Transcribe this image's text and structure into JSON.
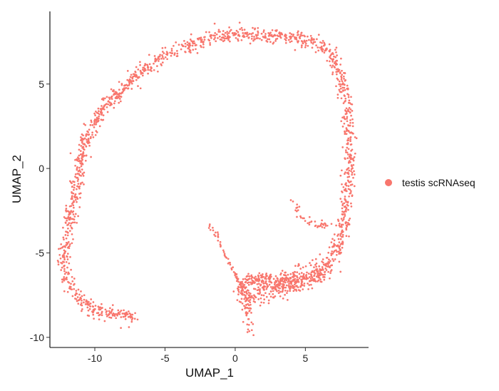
{
  "chart_data": {
    "type": "scatter",
    "xlabel": "UMAP_1",
    "ylabel": "UMAP_2",
    "xlim": [
      -13.2,
      9.5
    ],
    "ylim": [
      -10.6,
      9.3
    ],
    "xticks": [
      -10,
      -5,
      0,
      5
    ],
    "yticks": [
      -10,
      -5,
      0,
      5
    ],
    "xtick_labels": [
      "-10",
      "-5",
      "0",
      "5"
    ],
    "ytick_labels": [
      "-10",
      "-5",
      "0",
      "5"
    ],
    "grid": false,
    "legend": {
      "placement": "right",
      "entries": [
        "testis scRNAseq"
      ]
    },
    "series": [
      {
        "name": "testis scRNAseq",
        "color": "#F8766D",
        "paths": [
          {
            "id": "main-arc",
            "points": [
              [
                -7.2,
                -8.9
              ],
              [
                -8.0,
                -8.6
              ],
              [
                -9.0,
                -8.6
              ],
              [
                -10.0,
                -8.4
              ],
              [
                -10.8,
                -7.9
              ],
              [
                -11.6,
                -7.2
              ],
              [
                -12.0,
                -6.5
              ],
              [
                -12.3,
                -5.5
              ],
              [
                -12.0,
                -4.2
              ],
              [
                -11.8,
                -3.0
              ],
              [
                -11.5,
                -1.8
              ],
              [
                -11.2,
                -0.5
              ],
              [
                -10.9,
                0.8
              ],
              [
                -10.6,
                1.8
              ],
              [
                -10.1,
                2.6
              ],
              [
                -9.4,
                3.5
              ],
              [
                -8.6,
                4.3
              ],
              [
                -7.5,
                5.1
              ],
              [
                -6.6,
                5.8
              ],
              [
                -5.2,
                6.6
              ],
              [
                -3.8,
                7.1
              ],
              [
                -2.2,
                7.6
              ],
              [
                -0.5,
                7.9
              ],
              [
                1.0,
                7.9
              ],
              [
                2.5,
                7.9
              ],
              [
                3.8,
                7.8
              ],
              [
                5.5,
                7.5
              ],
              [
                6.8,
                6.9
              ],
              [
                7.5,
                5.5
              ],
              [
                7.9,
                4.0
              ],
              [
                8.1,
                2.5
              ],
              [
                8.2,
                0.5
              ],
              [
                8.0,
                -1.5
              ],
              [
                7.8,
                -3.0
              ],
              [
                7.4,
                -4.3
              ],
              [
                6.8,
                -5.5
              ],
              [
                5.8,
                -6.4
              ],
              [
                4.5,
                -6.8
              ],
              [
                3.2,
                -6.6
              ],
              [
                2.0,
                -6.5
              ],
              [
                0.8,
                -6.6
              ],
              [
                0.4,
                -7.3
              ]
            ],
            "count": 1700,
            "spread": 0.22
          },
          {
            "id": "branch-lower-tail",
            "points": [
              [
                0.6,
                -7.0
              ],
              [
                0.8,
                -7.8
              ],
              [
                0.9,
                -8.7
              ],
              [
                1.0,
                -9.6
              ]
            ],
            "count": 60,
            "spread": 0.18
          },
          {
            "id": "branch-diagonal-stream",
            "points": [
              [
                -1.9,
                -3.4
              ],
              [
                -1.2,
                -4.0
              ],
              [
                -0.8,
                -5.0
              ],
              [
                -0.2,
                -6.0
              ],
              [
                0.5,
                -7.0
              ]
            ],
            "count": 55,
            "spread": 0.08
          },
          {
            "id": "branch-right-spur",
            "points": [
              [
                4.1,
                -2.1
              ],
              [
                4.8,
                -2.9
              ],
              [
                5.8,
                -3.3
              ],
              [
                6.9,
                -3.6
              ]
            ],
            "count": 40,
            "spread": 0.15
          },
          {
            "id": "knot-bottom-right",
            "points": [
              [
                0.6,
                -7.8
              ],
              [
                2.0,
                -7.2
              ],
              [
                3.5,
                -6.9
              ],
              [
                5.0,
                -6.4
              ],
              [
                6.5,
                -5.8
              ]
            ],
            "count": 260,
            "spread": 0.38
          }
        ]
      }
    ]
  }
}
